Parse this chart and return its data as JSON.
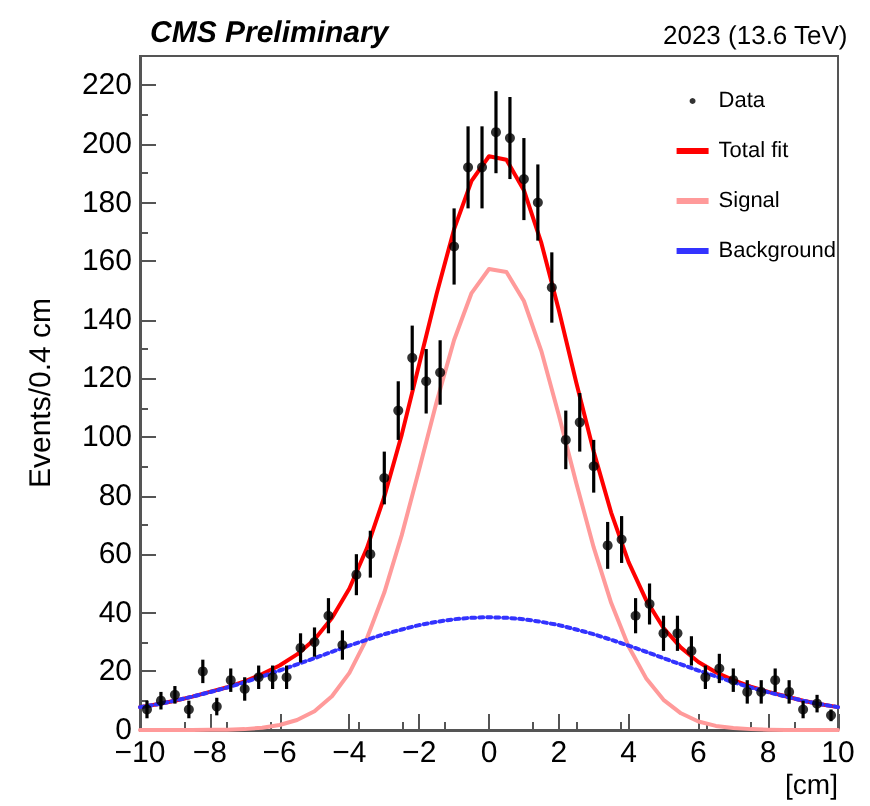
{
  "chart_data": {
    "type": "scatter",
    "title": "CMS Preliminary",
    "subtitle": "2023 (13.6 TeV)",
    "xlabel": "[cm]",
    "ylabel": "Events/0.4 cm",
    "xlim": [
      -10,
      10
    ],
    "xticks": [
      -10,
      -8,
      -6,
      -4,
      -2,
      0,
      2,
      4,
      6,
      8,
      10
    ],
    "ylim": [
      0,
      230
    ],
    "yticks": [
      0,
      20,
      40,
      60,
      80,
      100,
      120,
      140,
      160,
      180,
      200,
      220
    ],
    "grid": false,
    "legend": "top right",
    "series": [
      {
        "name": "Data",
        "color": "#000000",
        "marker": "circle",
        "x": [
          -9.8,
          -9.4,
          -9.0,
          -8.6,
          -8.2,
          -7.8,
          -7.4,
          -7.0,
          -6.6,
          -6.2,
          -5.8,
          -5.4,
          -5.0,
          -4.6,
          -4.2,
          -3.8,
          -3.4,
          -3.0,
          -2.6,
          -2.2,
          -1.8,
          -1.4,
          -1.0,
          -0.6,
          -0.2,
          0.2,
          0.6,
          1.0,
          1.4,
          1.8,
          2.2,
          2.6,
          3.0,
          3.4,
          3.8,
          4.2,
          4.6,
          5.0,
          5.4,
          5.8,
          6.2,
          6.6,
          7.0,
          7.4,
          7.8,
          8.2,
          8.6,
          9.0,
          9.4,
          9.8
        ],
        "values": [
          7,
          10,
          12,
          7,
          20,
          8,
          17,
          14,
          18,
          18,
          18,
          28,
          30,
          39,
          29,
          53,
          60,
          86,
          109,
          127,
          119,
          122,
          165,
          192,
          192,
          204,
          202,
          188,
          180,
          151,
          99,
          105,
          90,
          63,
          65,
          39,
          43,
          33,
          33,
          27,
          18,
          21,
          17,
          13,
          13,
          17,
          13,
          7,
          9,
          5
        ],
        "errors": [
          3,
          3,
          3,
          3,
          4,
          3,
          4,
          4,
          4,
          4,
          4,
          5,
          5,
          6,
          5,
          7,
          8,
          9,
          10,
          11,
          11,
          11,
          13,
          14,
          14,
          14,
          14,
          14,
          13,
          12,
          10,
          10,
          9,
          8,
          8,
          6,
          7,
          6,
          6,
          5,
          4,
          5,
          4,
          4,
          4,
          4,
          4,
          3,
          3,
          2
        ]
      },
      {
        "name": "Total fit",
        "type": "line",
        "color": "#ff0000",
        "line_style": "solid",
        "marker": "none",
        "x": [
          -10,
          -9.5,
          -9,
          -8.5,
          -8,
          -7.5,
          -7,
          -6.5,
          -6,
          -5.5,
          -5,
          -4.5,
          -4,
          -3.5,
          -3,
          -2.5,
          -2,
          -1.5,
          -1,
          -0.5,
          0,
          0.5,
          1,
          1.5,
          2,
          2.5,
          3,
          3.5,
          4,
          4.5,
          5,
          5.5,
          6,
          6.5,
          7,
          7.5,
          8,
          8.5,
          9,
          9.5,
          10
        ],
        "values": [
          7.8,
          8.8,
          10.0,
          11.4,
          13.0,
          14.6,
          16.6,
          19.1,
          22.0,
          25.8,
          30.9,
          38.2,
          48.3,
          62.0,
          79.6,
          100.8,
          124.8,
          148.9,
          170.9,
          187.4,
          195.8,
          194.6,
          184.2,
          166.2,
          143.3,
          118.6,
          95.0,
          74.2,
          57.3,
          44.4,
          34.8,
          28.1,
          23.2,
          19.7,
          17.0,
          14.8,
          13.0,
          11.5,
          10.0,
          8.8,
          7.8
        ]
      },
      {
        "name": "Signal",
        "type": "line",
        "color": "#ff9a9a",
        "line_style": "solid",
        "marker": "none",
        "x": [
          -10,
          -9.5,
          -9,
          -8.5,
          -8,
          -7.5,
          -7,
          -6.5,
          -6,
          -5.5,
          -5,
          -4.5,
          -4,
          -3.5,
          -3,
          -2.5,
          -2,
          -1.5,
          -1,
          -0.5,
          0,
          0.5,
          1,
          1.5,
          2,
          2.5,
          3,
          3.5,
          4,
          4.5,
          5,
          5.5,
          6,
          6.5,
          7,
          7.5,
          8,
          8.5,
          9,
          9.5,
          10
        ],
        "values": [
          0,
          0,
          0,
          0,
          0.1,
          0.1,
          0.3,
          0.8,
          1.7,
          3.4,
          6.4,
          11.5,
          19.5,
          31.2,
          46.9,
          66.5,
          89.0,
          112.0,
          133.1,
          149.1,
          157.3,
          156.3,
          146.4,
          129.3,
          107.5,
          84.3,
          62.3,
          43.4,
          28.5,
          17.7,
          10.3,
          5.7,
          2.9,
          1.4,
          0.7,
          0.3,
          0.1,
          0,
          0,
          0,
          0
        ]
      },
      {
        "name": "Background",
        "type": "line",
        "color": "#3333ff",
        "line_style": "dotted",
        "marker": "none",
        "x": [
          -10,
          -9.5,
          -9,
          -8.5,
          -8,
          -7.5,
          -7,
          -6.5,
          -6,
          -5.5,
          -5,
          -4.5,
          -4,
          -3.5,
          -3,
          -2.5,
          -2,
          -1.5,
          -1,
          -0.5,
          0,
          0.5,
          1,
          1.5,
          2,
          2.5,
          3,
          3.5,
          4,
          4.5,
          5,
          5.5,
          6,
          6.5,
          7,
          7.5,
          8,
          8.5,
          9,
          9.5,
          10
        ],
        "values": [
          7.8,
          8.8,
          10.0,
          11.4,
          12.9,
          14.5,
          16.3,
          18.3,
          20.3,
          22.4,
          24.5,
          26.7,
          28.8,
          30.8,
          32.7,
          34.3,
          35.8,
          36.9,
          37.8,
          38.3,
          38.5,
          38.3,
          37.8,
          36.9,
          35.8,
          34.3,
          32.7,
          30.8,
          28.8,
          26.7,
          24.5,
          22.4,
          20.3,
          18.3,
          16.3,
          14.5,
          12.9,
          11.4,
          10.0,
          8.8,
          7.8
        ]
      }
    ]
  }
}
